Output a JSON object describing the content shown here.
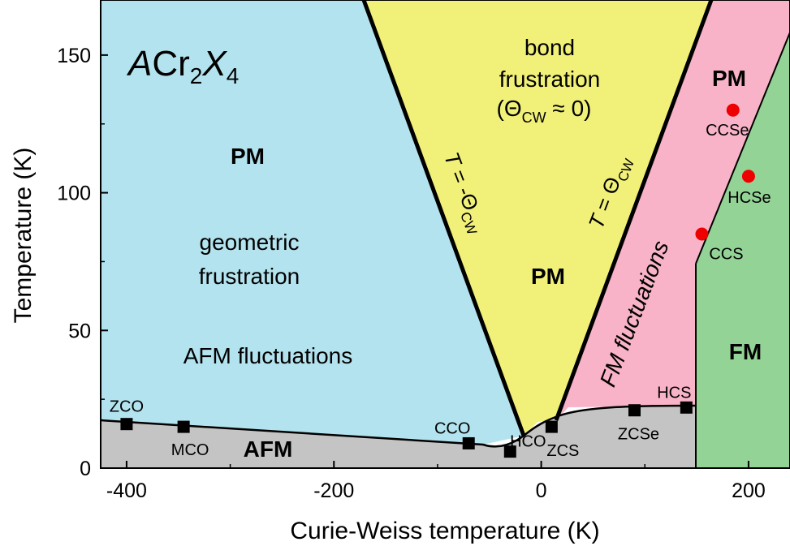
{
  "chart_data": {
    "type": "scatter",
    "title": "",
    "xlabel": "Curie-Weiss temperature (K)",
    "ylabel": "Temperature (K)",
    "xlim": [
      -425,
      240
    ],
    "ylim": [
      0,
      170
    ],
    "xticks": [
      -400,
      -200,
      0,
      200
    ],
    "xtick_labels": [
      "-400",
      "-200",
      "0",
      "200"
    ],
    "yticks": [
      0,
      50,
      100,
      150
    ],
    "ytick_labels": [
      "0",
      "50",
      "100",
      "150"
    ],
    "formula": {
      "a": "A",
      "cr": "Cr",
      "sub2": "2",
      "x": "X",
      "sub4": "4"
    },
    "regions": {
      "pm_left": "PM",
      "geometric_frustration_line1": "geometric",
      "geometric_frustration_line2": "frustration",
      "afm_fluctuations": "AFM fluctuations",
      "afm": "AFM",
      "bond_frustration_line1": "bond",
      "bond_frustration_line2": "frustration",
      "theta_open": "(Θ",
      "theta_sub": "CW",
      "theta_close": " ≈ 0)",
      "pm_center": "PM",
      "pm_right": "PM",
      "fm_fluctuations": "FM fluctuations",
      "fm": "FM"
    },
    "boundary_labels": {
      "left": {
        "t": "T",
        "eq": " = -Θ",
        "sub": "CW"
      },
      "right": {
        "t": "T",
        "eq": " = Θ",
        "sub": "CW"
      }
    },
    "colors": {
      "afm_paramagnetic_region": "#b3e3ee",
      "bond_frustration_region": "#f1f079",
      "fm_fluctuation_region": "#f8b3c8",
      "ferromagnetic_region": "#93d396",
      "ordered_region": "#c4c4c4",
      "square_marker": "#000000",
      "circle_marker": "#ee0000"
    },
    "series": [
      {
        "marker": "square",
        "points": [
          {
            "label": "ZCO",
            "x": -400,
            "y": 16
          },
          {
            "label": "MCO",
            "x": -345,
            "y": 15
          },
          {
            "label": "CCO",
            "x": -70,
            "y": 9
          },
          {
            "label": "HCO",
            "x": -30,
            "y": 6
          },
          {
            "label": "ZCS",
            "x": 10,
            "y": 15
          },
          {
            "label": "ZCSe",
            "x": 90,
            "y": 21
          },
          {
            "label": "HCS",
            "x": 140,
            "y": 22
          }
        ]
      },
      {
        "marker": "circle",
        "points": [
          {
            "label": "CCSe",
            "x": 185,
            "y": 130
          },
          {
            "label": "HCSe",
            "x": 200,
            "y": 106
          },
          {
            "label": "CCS",
            "x": 155,
            "y": 85
          }
        ]
      }
    ]
  }
}
